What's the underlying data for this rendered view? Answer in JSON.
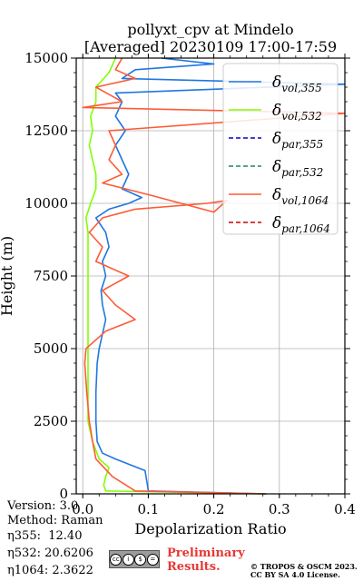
{
  "chart_data": {
    "type": "line",
    "title": "pollyxt_cpv at Mindelo",
    "subtitle": "[Averaged] 20230109 17:00-17:59",
    "xlabel": "Depolarization Ratio",
    "ylabel": "Height (m)",
    "xlim": [
      -0.01,
      0.4
    ],
    "ylim": [
      0,
      15000
    ],
    "xticks": [
      "0.0",
      "0.1",
      "0.2",
      "0.3",
      "0.4"
    ],
    "yticks": [
      "0",
      "2500",
      "5000",
      "7500",
      "10000",
      "12500",
      "15000"
    ],
    "grid": true,
    "legend_position": "top-right",
    "legend": [
      {
        "sym": "δ",
        "sub": "vol,355",
        "color": "#1f77e0",
        "dash": "solid"
      },
      {
        "sym": "δ",
        "sub": "vol,532",
        "color": "#80ff00",
        "dash": "solid"
      },
      {
        "sym": "δ",
        "sub": "par,355",
        "color": "#0000cc",
        "dash": "dashed"
      },
      {
        "sym": "δ",
        "sub": "par,532",
        "color": "#1a8a5a",
        "dash": "dashed"
      },
      {
        "sym": "δ",
        "sub": "vol,1064",
        "color": "#ff5a36",
        "dash": "solid"
      },
      {
        "sym": "δ",
        "sub": "par,1064",
        "color": "#cc0000",
        "dash": "dashed"
      }
    ],
    "series": [
      {
        "name": "δvol,355",
        "color": "#1f77e0",
        "points": [
          [
            0.28,
            0
          ],
          [
            0.1,
            100
          ],
          [
            0.098,
            400
          ],
          [
            0.095,
            800
          ],
          [
            0.05,
            1200
          ],
          [
            0.03,
            1400
          ],
          [
            0.022,
            1800
          ],
          [
            0.02,
            2500
          ],
          [
            0.02,
            3500
          ],
          [
            0.022,
            4500
          ],
          [
            0.025,
            5000
          ],
          [
            0.03,
            5500
          ],
          [
            0.035,
            6000
          ],
          [
            0.03,
            6500
          ],
          [
            0.028,
            7000
          ],
          [
            0.035,
            7500
          ],
          [
            0.03,
            8000
          ],
          [
            0.04,
            8500
          ],
          [
            0.035,
            9000
          ],
          [
            0.02,
            9500
          ],
          [
            0.04,
            9800
          ],
          [
            0.07,
            10000
          ],
          [
            0.09,
            10200
          ],
          [
            0.06,
            10500
          ],
          [
            0.07,
            11000
          ],
          [
            0.06,
            11500
          ],
          [
            0.05,
            12000
          ],
          [
            0.065,
            12500
          ],
          [
            0.05,
            13000
          ],
          [
            0.06,
            13500
          ],
          [
            0.05,
            13800
          ],
          [
            0.4,
            14100
          ],
          [
            0.06,
            14300
          ],
          [
            0.08,
            14600
          ],
          [
            0.2,
            14800
          ],
          [
            0.12,
            15000
          ]
        ]
      },
      {
        "name": "δvol,532",
        "color": "#80ff00",
        "points": [
          [
            0.28,
            0
          ],
          [
            0.035,
            100
          ],
          [
            0.032,
            300
          ],
          [
            0.035,
            600
          ],
          [
            0.04,
            900
          ],
          [
            0.025,
            1200
          ],
          [
            0.015,
            1800
          ],
          [
            0.008,
            2500
          ],
          [
            0.008,
            3500
          ],
          [
            0.008,
            4500
          ],
          [
            0.008,
            5000
          ],
          [
            0.008,
            6000
          ],
          [
            0.008,
            7000
          ],
          [
            0.008,
            8000
          ],
          [
            0.008,
            9000
          ],
          [
            0.005,
            9500
          ],
          [
            0.012,
            10000
          ],
          [
            0.02,
            10500
          ],
          [
            0.02,
            11000
          ],
          [
            0.015,
            11500
          ],
          [
            0.01,
            12000
          ],
          [
            0.015,
            12500
          ],
          [
            0.012,
            13000
          ],
          [
            0.02,
            13500
          ],
          [
            0.02,
            14000
          ],
          [
            0.04,
            14500
          ],
          [
            0.05,
            15000
          ]
        ]
      },
      {
        "name": "δvol,1064",
        "color": "#ff5a36",
        "points": [
          [
            0.28,
            0
          ],
          [
            0.08,
            100
          ],
          [
            0.045,
            600
          ],
          [
            0.02,
            1200
          ],
          [
            0.015,
            1800
          ],
          [
            0.01,
            2500
          ],
          [
            0.006,
            3500
          ],
          [
            0.003,
            4500
          ],
          [
            0.005,
            5000
          ],
          [
            0.035,
            5600
          ],
          [
            0.08,
            6000
          ],
          [
            0.05,
            6500
          ],
          [
            0.03,
            7000
          ],
          [
            0.07,
            7500
          ],
          [
            0.02,
            8000
          ],
          [
            0.03,
            8500
          ],
          [
            0.01,
            9000
          ],
          [
            0.03,
            9500
          ],
          [
            0.08,
            9800
          ],
          [
            0.19,
            10000
          ],
          [
            0.22,
            10100
          ],
          [
            0.2,
            9700
          ],
          [
            0.1,
            10300
          ],
          [
            0.03,
            10700
          ],
          [
            0.06,
            11000
          ],
          [
            0.04,
            11500
          ],
          [
            0.05,
            12000
          ],
          [
            0.04,
            12500
          ],
          [
            0.4,
            13100
          ],
          [
            0.0,
            13300
          ],
          [
            0.06,
            13500
          ],
          [
            0.02,
            14000
          ],
          [
            0.08,
            14300
          ],
          [
            0.05,
            14600
          ],
          [
            0.06,
            15000
          ]
        ]
      }
    ]
  },
  "meta": {
    "version": "Version: 3.0",
    "method": "Method: Raman",
    "eta355": "η355:  12.40",
    "eta532": "η532: 20.6206",
    "eta1064": "η1064: 2.3622"
  },
  "footer": {
    "license_logo": [
      "cc",
      "i",
      "$",
      "="
    ],
    "preliminary": "Preliminary\nResults.",
    "copyright": "© TROPOS & OSCM 2023.\nCC BY SA 4.0 License."
  }
}
